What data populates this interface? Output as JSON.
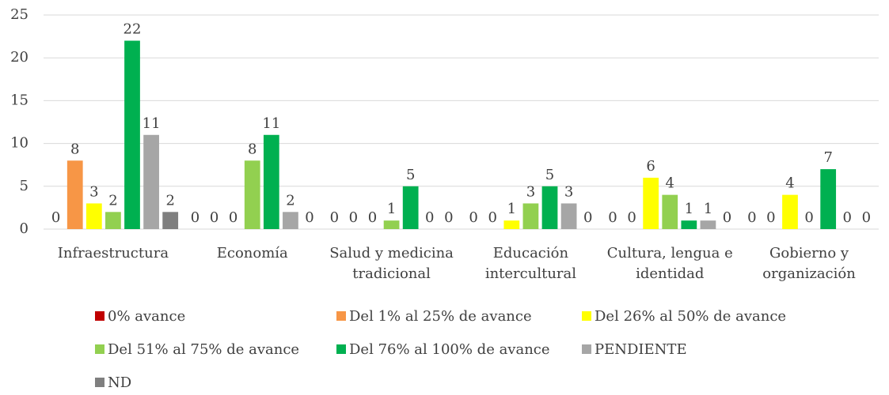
{
  "chart_data": {
    "type": "bar",
    "categories": [
      "Infraestructura",
      "Economía",
      "Salud y medicina tradicional",
      "Educación intercultural",
      "Cultura, lengua e identidad",
      "Gobierno y organización"
    ],
    "series": [
      {
        "name": "0% avance",
        "color": "#c00000",
        "values": [
          0,
          0,
          0,
          0,
          0,
          0
        ]
      },
      {
        "name": "Del 1% al 25% de avance",
        "color": "#f79646",
        "values": [
          8,
          0,
          0,
          0,
          0,
          0
        ]
      },
      {
        "name": "Del 26% al 50% de avance",
        "color": "#ffff00",
        "values": [
          3,
          0,
          0,
          1,
          6,
          4
        ]
      },
      {
        "name": "Del 51% al 75% de avance",
        "color": "#92d050",
        "values": [
          2,
          8,
          1,
          3,
          4,
          0
        ]
      },
      {
        "name": "Del 76% al 100% de avance",
        "color": "#00b050",
        "values": [
          22,
          11,
          5,
          5,
          1,
          7
        ]
      },
      {
        "name": "PENDIENTE",
        "color": "#a6a6a6",
        "values": [
          11,
          2,
          0,
          3,
          1,
          0
        ]
      },
      {
        "name": "ND",
        "color": "#7f7f7f",
        "values": [
          2,
          0,
          0,
          0,
          0,
          0
        ]
      }
    ],
    "ylim": [
      0,
      25
    ],
    "yticks": [
      0,
      5,
      10,
      15,
      20,
      25
    ],
    "grid": true,
    "legend": "bottom"
  }
}
